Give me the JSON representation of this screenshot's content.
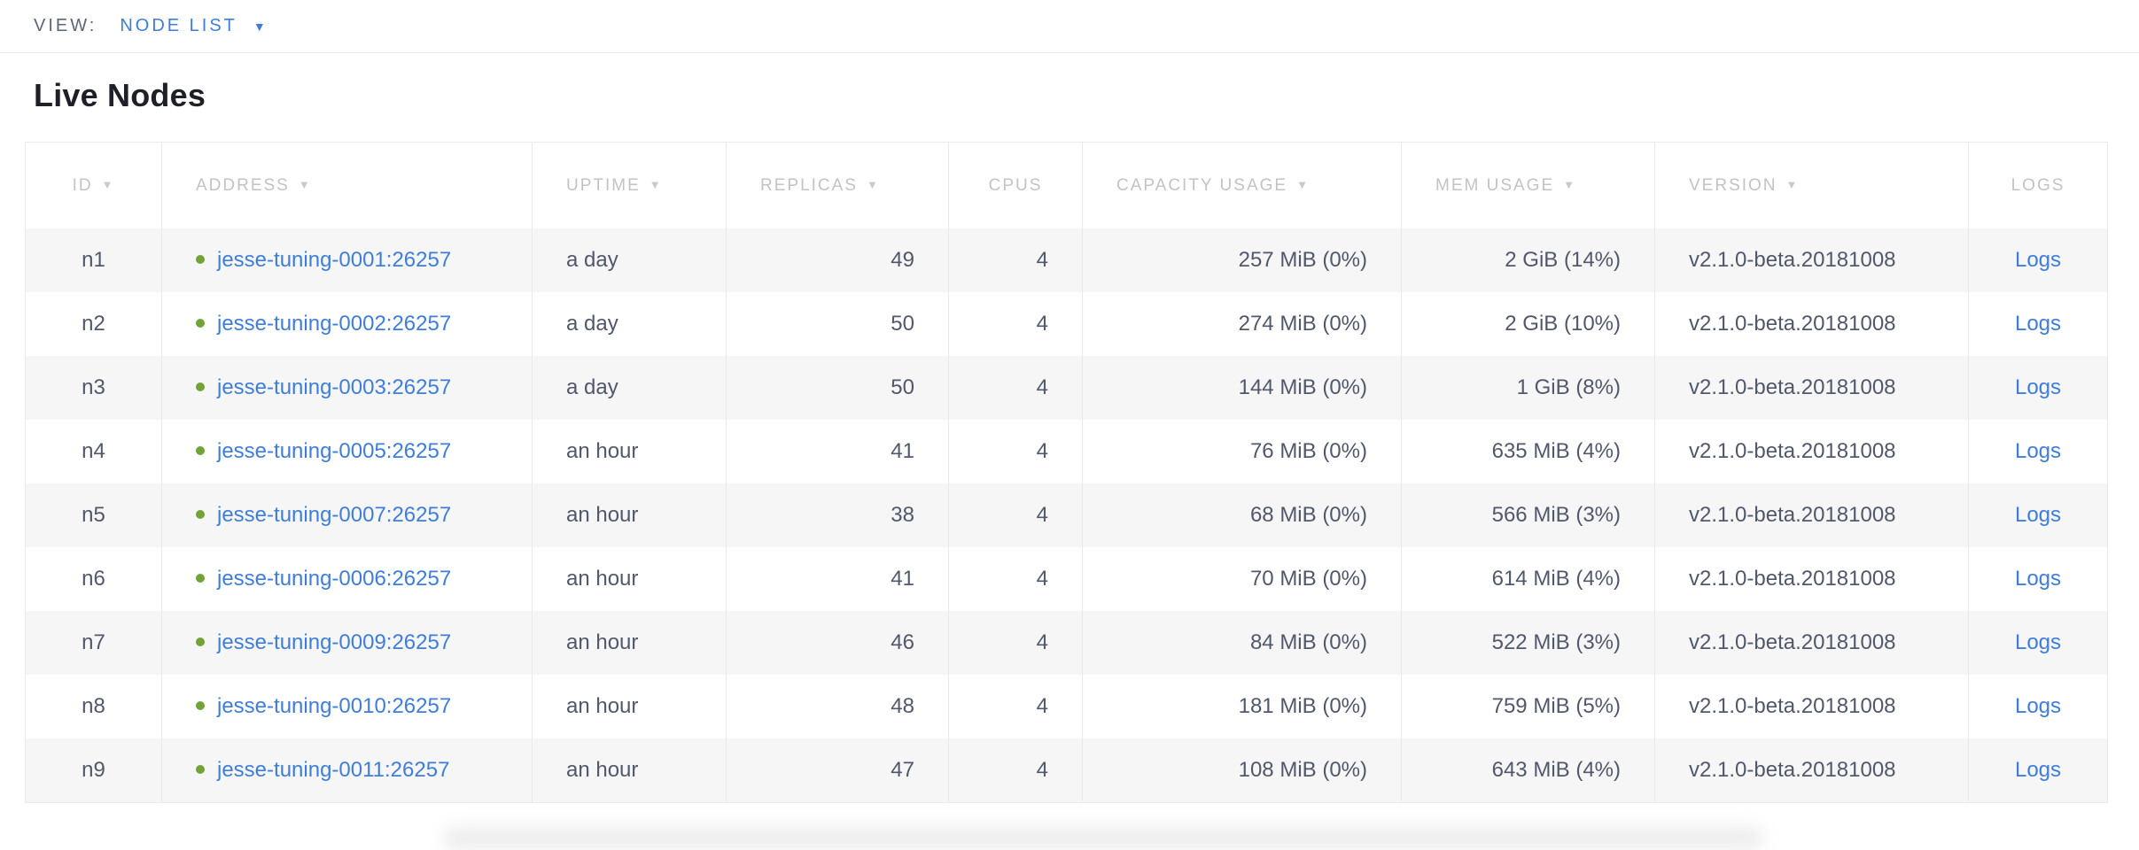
{
  "view_bar": {
    "label": "VIEW:",
    "selected": "NODE LIST"
  },
  "page": {
    "title": "Live Nodes"
  },
  "icons": {
    "sort_desc": "▼",
    "dropdown_caret": "▼",
    "node_health": "green-dot"
  },
  "colors": {
    "accent_blue": "#3e7dde",
    "healthy_green": "#71a435",
    "header_text_gray": "#c0c3c7",
    "cell_text": "#51586c",
    "row_stripe": "#f6f6f7",
    "view_label_gray": "#5b6677"
  },
  "table": {
    "columns": [
      {
        "key": "id",
        "label": "ID",
        "sortable": true,
        "align": "center",
        "header_align": "center"
      },
      {
        "key": "address",
        "label": "ADDRESS",
        "sortable": true,
        "align": "left",
        "header_align": "left"
      },
      {
        "key": "uptime",
        "label": "UPTIME",
        "sortable": true,
        "align": "left",
        "header_align": "left"
      },
      {
        "key": "replicas",
        "label": "REPLICAS",
        "sortable": true,
        "align": "right",
        "header_align": "left"
      },
      {
        "key": "cpus",
        "label": "CPUS",
        "sortable": false,
        "align": "right",
        "header_align": "center"
      },
      {
        "key": "capacity",
        "label": "CAPACITY USAGE",
        "sortable": true,
        "align": "right",
        "header_align": "left"
      },
      {
        "key": "mem",
        "label": "MEM USAGE",
        "sortable": true,
        "align": "right",
        "header_align": "left"
      },
      {
        "key": "version",
        "label": "VERSION",
        "sortable": true,
        "align": "left",
        "header_align": "left"
      },
      {
        "key": "logs",
        "label": "LOGS",
        "sortable": false,
        "align": "center",
        "header_align": "center"
      }
    ],
    "rows": [
      {
        "id": "n1",
        "status": "healthy",
        "address": "jesse-tuning-0001:26257",
        "uptime": "a day",
        "replicas": "49",
        "cpus": "4",
        "capacity": "257 MiB (0%)",
        "mem": "2 GiB (14%)",
        "version": "v2.1.0-beta.20181008",
        "logs": "Logs"
      },
      {
        "id": "n2",
        "status": "healthy",
        "address": "jesse-tuning-0002:26257",
        "uptime": "a day",
        "replicas": "50",
        "cpus": "4",
        "capacity": "274 MiB (0%)",
        "mem": "2 GiB (10%)",
        "version": "v2.1.0-beta.20181008",
        "logs": "Logs"
      },
      {
        "id": "n3",
        "status": "healthy",
        "address": "jesse-tuning-0003:26257",
        "uptime": "a day",
        "replicas": "50",
        "cpus": "4",
        "capacity": "144 MiB (0%)",
        "mem": "1 GiB (8%)",
        "version": "v2.1.0-beta.20181008",
        "logs": "Logs"
      },
      {
        "id": "n4",
        "status": "healthy",
        "address": "jesse-tuning-0005:26257",
        "uptime": "an hour",
        "replicas": "41",
        "cpus": "4",
        "capacity": "76 MiB (0%)",
        "mem": "635 MiB (4%)",
        "version": "v2.1.0-beta.20181008",
        "logs": "Logs"
      },
      {
        "id": "n5",
        "status": "healthy",
        "address": "jesse-tuning-0007:26257",
        "uptime": "an hour",
        "replicas": "38",
        "cpus": "4",
        "capacity": "68 MiB (0%)",
        "mem": "566 MiB (3%)",
        "version": "v2.1.0-beta.20181008",
        "logs": "Logs"
      },
      {
        "id": "n6",
        "status": "healthy",
        "address": "jesse-tuning-0006:26257",
        "uptime": "an hour",
        "replicas": "41",
        "cpus": "4",
        "capacity": "70 MiB (0%)",
        "mem": "614 MiB (4%)",
        "version": "v2.1.0-beta.20181008",
        "logs": "Logs"
      },
      {
        "id": "n7",
        "status": "healthy",
        "address": "jesse-tuning-0009:26257",
        "uptime": "an hour",
        "replicas": "46",
        "cpus": "4",
        "capacity": "84 MiB (0%)",
        "mem": "522 MiB (3%)",
        "version": "v2.1.0-beta.20181008",
        "logs": "Logs"
      },
      {
        "id": "n8",
        "status": "healthy",
        "address": "jesse-tuning-0010:26257",
        "uptime": "an hour",
        "replicas": "48",
        "cpus": "4",
        "capacity": "181 MiB (0%)",
        "mem": "759 MiB (5%)",
        "version": "v2.1.0-beta.20181008",
        "logs": "Logs"
      },
      {
        "id": "n9",
        "status": "healthy",
        "address": "jesse-tuning-0011:26257",
        "uptime": "an hour",
        "replicas": "47",
        "cpus": "4",
        "capacity": "108 MiB (0%)",
        "mem": "643 MiB (4%)",
        "version": "v2.1.0-beta.20181008",
        "logs": "Logs"
      }
    ]
  }
}
